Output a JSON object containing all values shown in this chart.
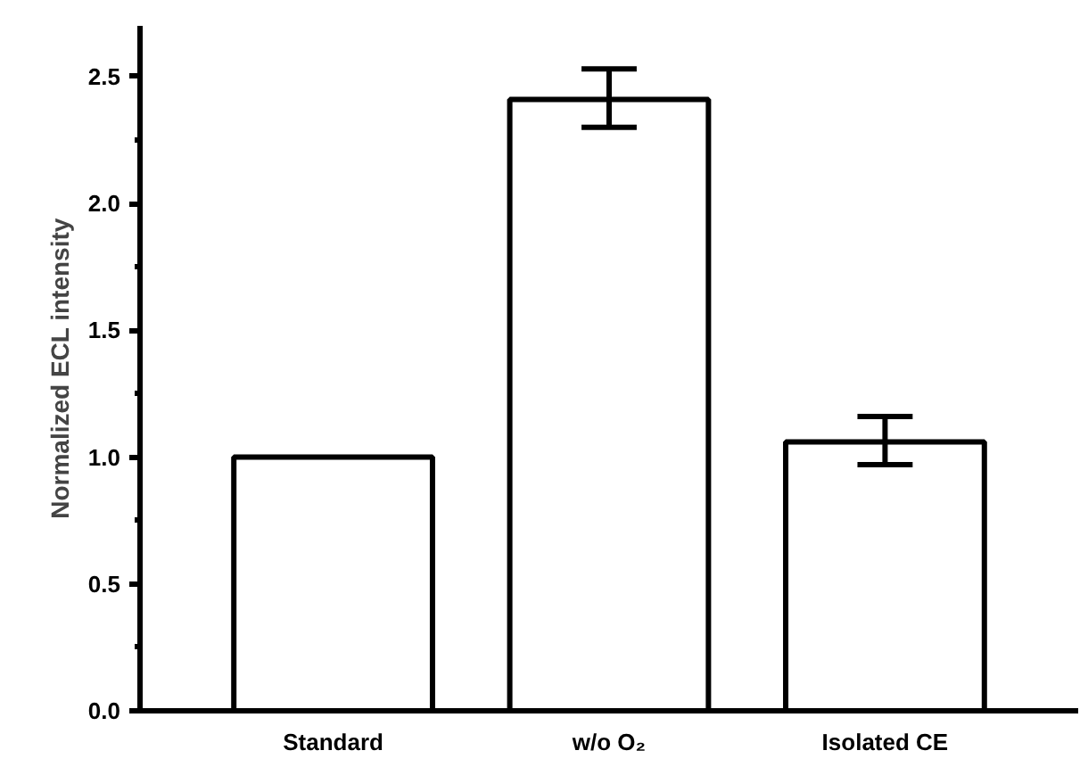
{
  "chart_data": {
    "type": "bar",
    "ylabel": "Normalized ECL intensity",
    "categories": [
      "Standard",
      "w/o O₂",
      "Isolated CE"
    ],
    "values": [
      1.0,
      2.41,
      1.06
    ],
    "errors": [
      null,
      [
        2.3,
        2.53
      ],
      [
        0.97,
        1.16
      ]
    ],
    "color": "#ffffff",
    "ylim": [
      0,
      2.7
    ],
    "yticks": [
      {
        "value": 0,
        "label": "0.0"
      },
      {
        "value": 0.5,
        "label": "0.5"
      },
      {
        "value": 1,
        "label": "1.0"
      },
      {
        "value": 1.5,
        "label": "1.5"
      },
      {
        "value": 2,
        "label": "2.0"
      },
      {
        "value": 2.5,
        "label": "2.5"
      }
    ],
    "grid": false
  }
}
